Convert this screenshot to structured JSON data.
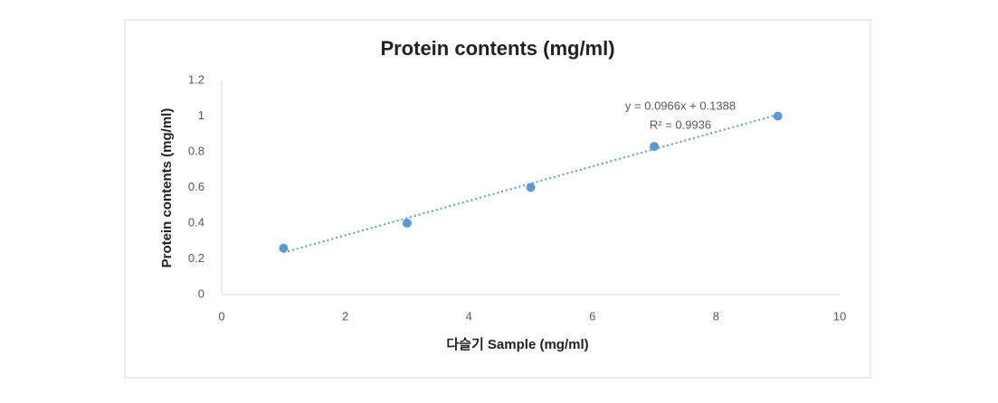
{
  "chart_data": {
    "type": "scatter",
    "title": "Protein contents (mg/ml)",
    "x_label": "다슬기 Sample (mg/ml)",
    "y_label": "Protein contents (mg/ml)",
    "x": [
      1,
      3,
      5,
      7,
      9
    ],
    "values": [
      0.26,
      0.4,
      0.6,
      0.83,
      1.0
    ],
    "color": "#5b9bd5",
    "xlim": [
      0,
      10
    ],
    "xticks": [
      0,
      2,
      4,
      6,
      8,
      10
    ],
    "ylim": [
      0,
      1.2
    ],
    "yticks": [
      0,
      0.2,
      0.4,
      0.6,
      0.8,
      1,
      1.2
    ],
    "grid": false,
    "trendline": {
      "equation": "y = 0.0966x + 0.1388",
      "r_squared": "R² = 0.9936",
      "slope": 0.0966,
      "intercept": 0.1388
    }
  }
}
